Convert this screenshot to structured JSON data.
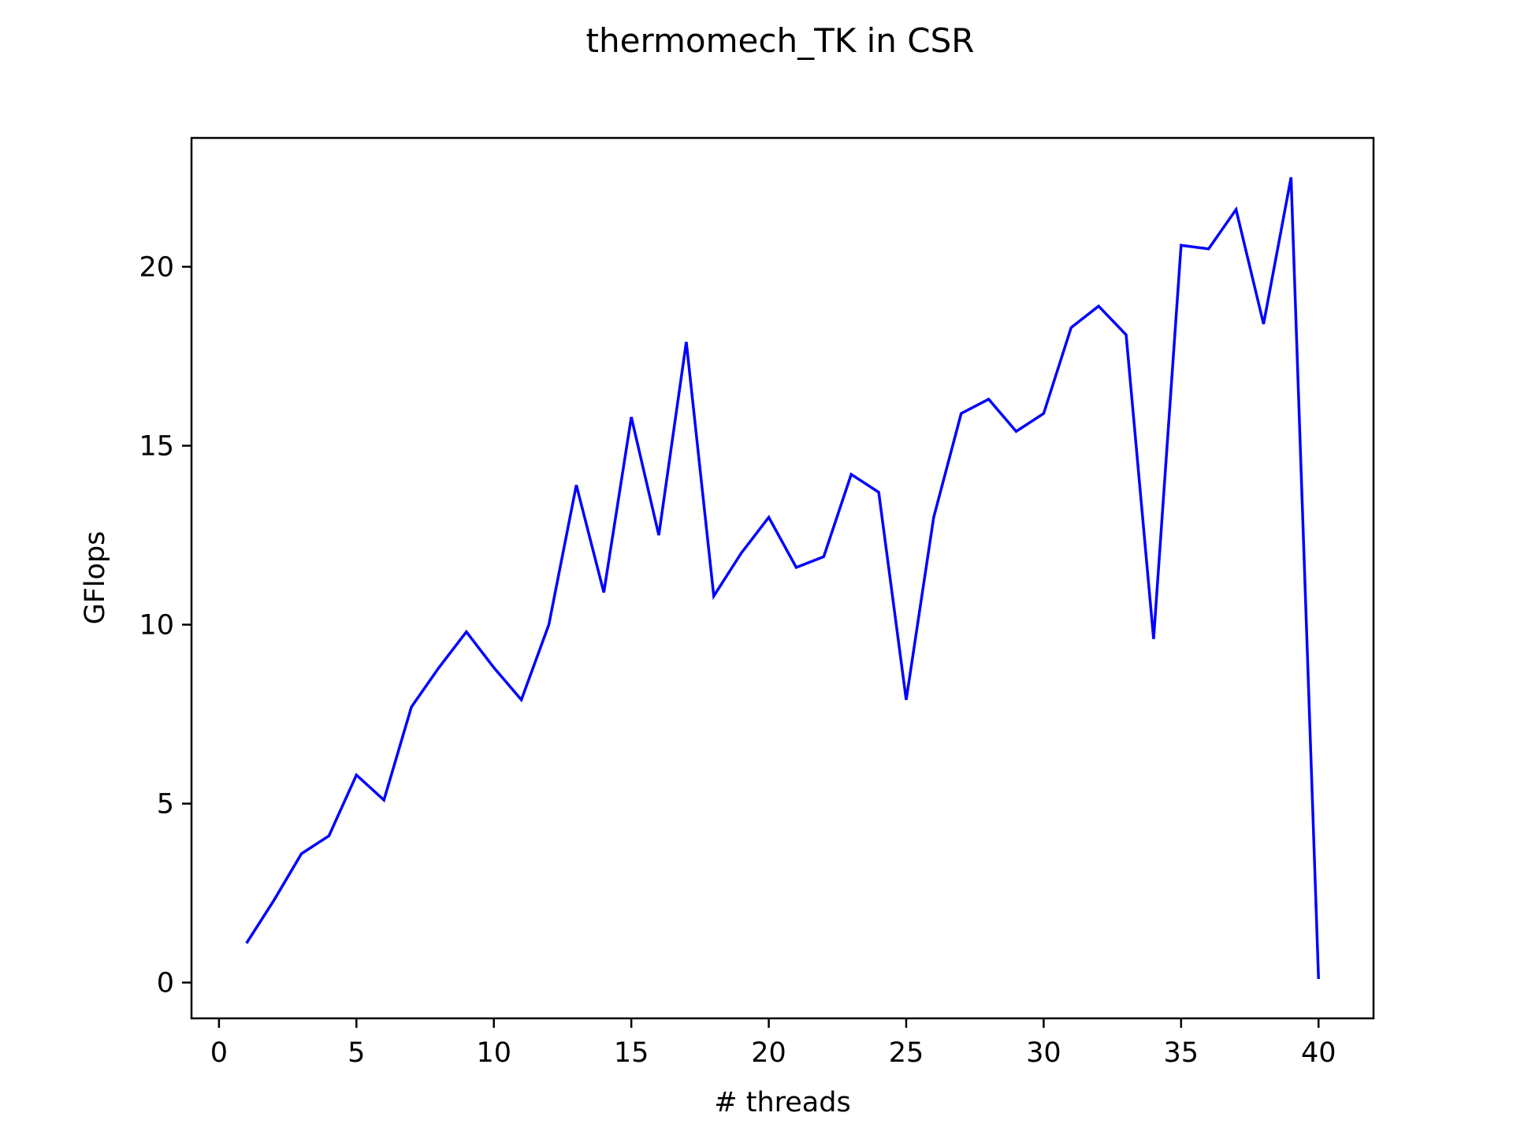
{
  "chart_data": {
    "type": "line",
    "title": "thermomech_TK in CSR",
    "xlabel": "# threads",
    "ylabel": "GFlops",
    "xlim": [
      -1,
      42
    ],
    "ylim": [
      -1,
      23.6
    ],
    "xticks": [
      0,
      5,
      10,
      15,
      20,
      25,
      30,
      35,
      40
    ],
    "yticks": [
      0,
      5,
      10,
      15,
      20
    ],
    "grid": false,
    "series": [
      {
        "color": "#0000ff",
        "x": [
          1,
          2,
          3,
          4,
          5,
          6,
          7,
          8,
          9,
          10,
          11,
          12,
          13,
          14,
          15,
          16,
          17,
          18,
          19,
          20,
          21,
          22,
          23,
          24,
          25,
          26,
          27,
          28,
          29,
          30,
          31,
          32,
          33,
          34,
          35,
          36,
          37,
          38,
          39,
          40
        ],
        "values": [
          1.1,
          2.3,
          3.6,
          4.1,
          5.8,
          5.1,
          7.7,
          8.8,
          9.8,
          8.8,
          7.9,
          10.0,
          13.9,
          10.9,
          15.8,
          12.5,
          17.9,
          10.8,
          12.0,
          13.0,
          11.6,
          11.9,
          14.2,
          13.7,
          7.9,
          13.0,
          15.9,
          16.3,
          15.4,
          15.9,
          18.3,
          18.9,
          18.1,
          9.6,
          20.6,
          20.5,
          21.6,
          18.4,
          22.5,
          0.1
        ]
      }
    ]
  }
}
